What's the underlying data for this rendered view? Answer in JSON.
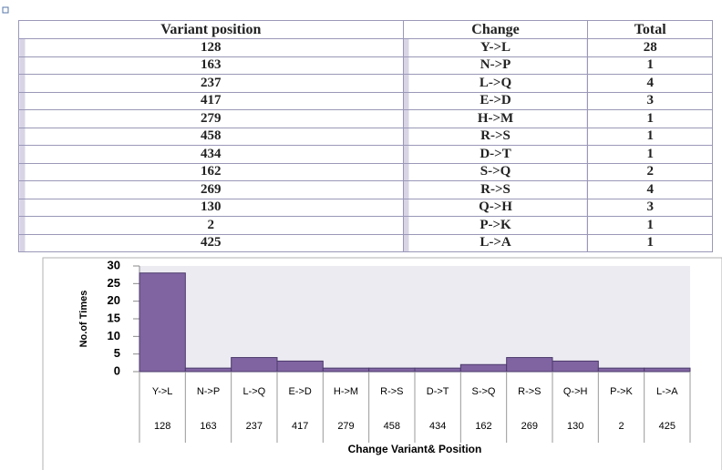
{
  "table": {
    "header": [
      "Variant position",
      "Change",
      "Total"
    ],
    "rows": [
      [
        "128",
        "Y->L",
        "28"
      ],
      [
        "163",
        "N->P",
        "1"
      ],
      [
        "237",
        "L->Q",
        "4"
      ],
      [
        "417",
        "E->D",
        "3"
      ],
      [
        "279",
        "H->M",
        "1"
      ],
      [
        "458",
        "R->S",
        "1"
      ],
      [
        "434",
        "D->T",
        "1"
      ],
      [
        "162",
        "S->Q",
        "2"
      ],
      [
        "269",
        "R->S",
        "4"
      ],
      [
        "130",
        "Q->H",
        "3"
      ],
      [
        "2",
        "P->K",
        "1"
      ],
      [
        "425",
        "L->A",
        "1"
      ]
    ]
  },
  "chart_data": {
    "type": "bar",
    "categories": [
      "Y->L",
      "N->P",
      "L->Q",
      "E->D",
      "H->M",
      "R->S",
      "D->T",
      "S->Q",
      "R->S",
      "Q->H",
      "P->K",
      "L->A"
    ],
    "positions": [
      "128",
      "163",
      "237",
      "417",
      "279",
      "458",
      "434",
      "162",
      "269",
      "130",
      "2",
      "425"
    ],
    "values": [
      28,
      1,
      4,
      3,
      1,
      1,
      1,
      2,
      4,
      3,
      1,
      1
    ],
    "color": "#8064a2",
    "ylim": [
      0,
      30
    ],
    "yticks": [
      0,
      5,
      10,
      15,
      20,
      25,
      30
    ],
    "ylabel": "No.of Times",
    "xlabel": "Change Variant& Position"
  }
}
